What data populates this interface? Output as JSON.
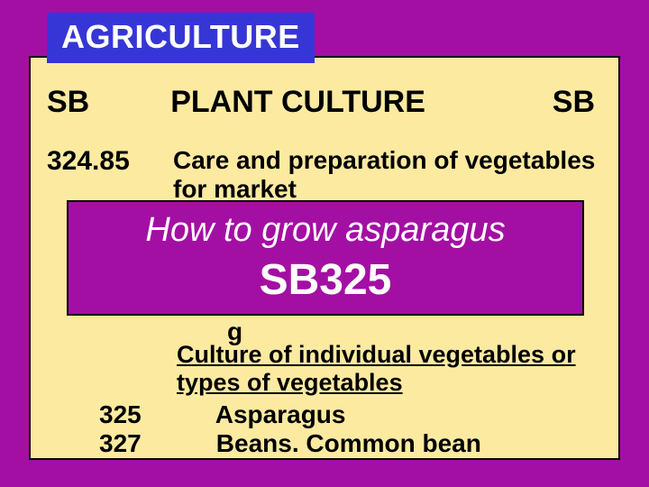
{
  "colors": {
    "outer_bg": "#a30fa3",
    "panel_bg": "#fdeaa1",
    "banner_bg": "#3636d6",
    "banner_text": "#ffffff",
    "text": "#000000",
    "overlay_bg": "#a30fa3",
    "overlay_text": "#ffffff"
  },
  "banner": {
    "text": "AGRICULTURE"
  },
  "header": {
    "left": "SB",
    "center": "PLANT CULTURE",
    "right": "SB"
  },
  "entry1": {
    "code": "324.85",
    "text": "Care and preparation of vegetables for market"
  },
  "overlay": {
    "line1": "How to grow asparagus",
    "line2": "SB325"
  },
  "fragment_g": "g",
  "culture_line": "Culture of individual vegetables or types of vegetables",
  "entry_asparagus": {
    "code": "325",
    "text": "Asparagus"
  },
  "entry_beans": {
    "code": "327",
    "text": "Beans. Common bean"
  }
}
